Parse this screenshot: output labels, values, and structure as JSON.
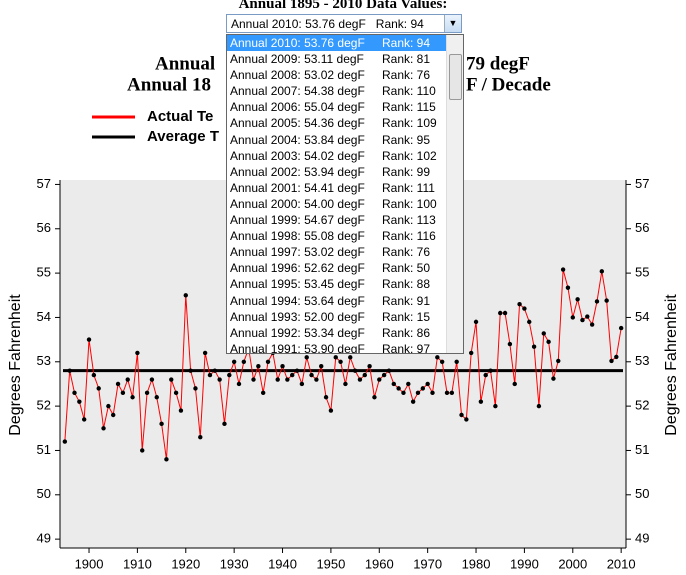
{
  "header": {
    "label": "Annual 1895 - 2010 Data Values:"
  },
  "select": {
    "selected": {
      "label": "Annual 2010: 53.76 degF",
      "rank": "Rank: 94"
    },
    "options": [
      {
        "label": "Annual 2010: 53.76 degF",
        "rank": "Rank: 94"
      },
      {
        "label": "Annual 2009: 53.11 degF",
        "rank": "Rank: 81"
      },
      {
        "label": "Annual 2008: 53.02 degF",
        "rank": "Rank: 76"
      },
      {
        "label": "Annual 2007: 54.38 degF",
        "rank": "Rank: 110"
      },
      {
        "label": "Annual 2006: 55.04 degF",
        "rank": "Rank: 115"
      },
      {
        "label": "Annual 2005: 54.36 degF",
        "rank": "Rank: 109"
      },
      {
        "label": "Annual 2004: 53.84 degF",
        "rank": "Rank: 95"
      },
      {
        "label": "Annual 2003: 54.02 degF",
        "rank": "Rank: 102"
      },
      {
        "label": "Annual 2002: 53.94 degF",
        "rank": "Rank: 99"
      },
      {
        "label": "Annual 2001: 54.41 degF",
        "rank": "Rank: 111"
      },
      {
        "label": "Annual 2000: 54.00 degF",
        "rank": "Rank: 100"
      },
      {
        "label": "Annual 1999: 54.67 degF",
        "rank": "Rank: 113"
      },
      {
        "label": "Annual 1998: 55.08 degF",
        "rank": "Rank: 116"
      },
      {
        "label": "Annual 1997: 53.02 degF",
        "rank": "Rank: 76"
      },
      {
        "label": "Annual 1996: 52.62 degF",
        "rank": "Rank: 50"
      },
      {
        "label": "Annual 1995: 53.45 degF",
        "rank": "Rank: 88"
      },
      {
        "label": "Annual 1994: 53.64 degF",
        "rank": "Rank: 91"
      },
      {
        "label": "Annual 1993: 52.00 degF",
        "rank": "Rank: 15"
      },
      {
        "label": "Annual 1992: 53.34 degF",
        "rank": "Rank: 86"
      },
      {
        "label": "Annual 1991: 53.90 degF",
        "rank": "Rank: 97"
      }
    ]
  },
  "chart_data": {
    "type": "line",
    "title_fragments": [
      [
        "Annual",
        "79 degF"
      ],
      [
        "Annual 18",
        "F / Decade"
      ]
    ],
    "y_label": "Degrees Fahrenheit",
    "x": [
      1895,
      1896,
      1897,
      1898,
      1899,
      1900,
      1901,
      1902,
      1903,
      1904,
      1905,
      1906,
      1907,
      1908,
      1909,
      1910,
      1911,
      1912,
      1913,
      1914,
      1915,
      1916,
      1917,
      1918,
      1919,
      1920,
      1921,
      1922,
      1923,
      1924,
      1925,
      1926,
      1927,
      1928,
      1929,
      1930,
      1931,
      1932,
      1933,
      1934,
      1935,
      1936,
      1937,
      1938,
      1939,
      1940,
      1941,
      1942,
      1943,
      1944,
      1945,
      1946,
      1947,
      1948,
      1949,
      1950,
      1951,
      1952,
      1953,
      1954,
      1955,
      1956,
      1957,
      1958,
      1959,
      1960,
      1961,
      1962,
      1963,
      1964,
      1965,
      1966,
      1967,
      1968,
      1969,
      1970,
      1971,
      1972,
      1973,
      1974,
      1975,
      1976,
      1977,
      1978,
      1979,
      1980,
      1981,
      1982,
      1983,
      1984,
      1985,
      1986,
      1987,
      1988,
      1989,
      1990,
      1991,
      1992,
      1993,
      1994,
      1995,
      1996,
      1997,
      1998,
      1999,
      2000,
      2001,
      2002,
      2003,
      2004,
      2005,
      2006,
      2007,
      2008,
      2009,
      2010
    ],
    "series": [
      {
        "name": "Actual Te",
        "color": "#ff0000",
        "values": [
          51.2,
          52.8,
          52.3,
          52.1,
          51.7,
          53.5,
          52.7,
          52.4,
          51.5,
          52.0,
          51.8,
          52.5,
          52.3,
          52.6,
          52.2,
          53.2,
          51.0,
          52.3,
          52.6,
          52.2,
          51.6,
          50.8,
          52.6,
          52.3,
          51.9,
          54.5,
          52.8,
          52.4,
          51.3,
          53.2,
          52.7,
          52.8,
          52.6,
          51.6,
          52.7,
          53.0,
          52.5,
          53.0,
          53.3,
          52.6,
          52.9,
          52.3,
          53.0,
          53.2,
          52.6,
          52.9,
          52.6,
          52.7,
          52.8,
          52.5,
          53.1,
          52.7,
          52.6,
          52.9,
          52.2,
          51.9,
          53.1,
          53.0,
          52.5,
          53.1,
          52.8,
          52.6,
          52.7,
          52.9,
          52.2,
          52.6,
          52.7,
          52.8,
          52.5,
          52.4,
          52.3,
          52.5,
          52.1,
          52.3,
          52.4,
          52.5,
          52.3,
          53.1,
          53.0,
          52.3,
          52.3,
          53.0,
          51.8,
          51.7,
          53.2,
          53.9,
          52.1,
          52.7,
          52.8,
          52.0,
          54.1,
          54.1,
          53.4,
          52.5,
          54.3,
          54.2,
          53.9,
          53.34,
          52.0,
          53.64,
          53.45,
          52.62,
          53.02,
          55.08,
          54.67,
          54.0,
          54.41,
          53.94,
          54.02,
          53.84,
          54.36,
          55.04,
          54.38,
          53.02,
          53.11,
          53.76
        ]
      }
    ],
    "average": {
      "name": "Average T",
      "color": "#000000",
      "value": 52.8
    },
    "xlim": [
      1894,
      2011
    ],
    "xticks": [
      1900,
      1910,
      1920,
      1930,
      1940,
      1950,
      1960,
      1970,
      1980,
      1990,
      2000,
      2010
    ],
    "ylim": [
      48.8,
      57.1
    ],
    "yticks": [
      49,
      50,
      51,
      52,
      53,
      54,
      55,
      56,
      57
    ]
  }
}
